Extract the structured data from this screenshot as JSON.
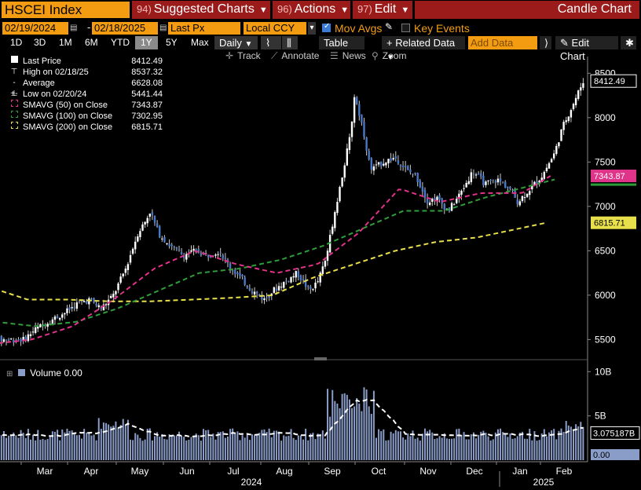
{
  "header": {
    "ticker": "HSCEI Index",
    "menu_suggested": {
      "num": "94)",
      "label": "Suggested Charts"
    },
    "menu_actions": {
      "num": "96)",
      "label": "Actions"
    },
    "menu_edit": {
      "num": "97)",
      "label": "Edit"
    },
    "chart_title": "Candle Chart"
  },
  "controls": {
    "start_date": "02/19/2024",
    "end_date": "02/18/2025",
    "field": "Last Px",
    "currency": "Local CCY",
    "mov_avgs_label": "Mov Avgs",
    "mov_avgs_checked": true,
    "key_events_label": "Key Events",
    "key_events_checked": false
  },
  "periods": [
    "1D",
    "3D",
    "1M",
    "6M",
    "YTD",
    "1Y",
    "5Y",
    "Max"
  ],
  "active_period": "1Y",
  "frequency": "Daily",
  "table_label": "Table",
  "related_label": "+ Related Data",
  "add_data_placeholder": "Add Data",
  "edit_chart_label": "Edit Chart",
  "toolbar": {
    "track": "Track",
    "annotate": "Annotate",
    "news": "News",
    "zoom": "Zoom"
  },
  "legend": [
    {
      "label": "Last Price",
      "value": "8412.49"
    },
    {
      "label": "High on 02/18/25",
      "value": "8537.32"
    },
    {
      "label": "Average",
      "value": "6628.08"
    },
    {
      "label": "Low on 02/20/24",
      "value": "5441.44"
    },
    {
      "label": "SMAVG (50)  on Close",
      "value": "7343.87"
    },
    {
      "label": "SMAVG (100)  on Close",
      "value": "7302.95"
    },
    {
      "label": "SMAVG (200)  on Close",
      "value": "6815.71"
    }
  ],
  "colors": {
    "sma50": "#e0338a",
    "sma100": "#2e9e3a",
    "sma200": "#e8e04a",
    "up": "#ffffff",
    "down": "#4a78c8",
    "accent": "#f39c12",
    "menu": "#9b1b1b"
  },
  "price_tags": {
    "last": "8412.49",
    "sma50": "7343.87",
    "sma200": "6815.71"
  },
  "volume": {
    "legend": "Volume 0.00",
    "last_avg": "3.075187B",
    "last": "0.00"
  },
  "chart_data": {
    "type": "candlestick",
    "price_axis": {
      "ticks": [
        "5500",
        "6000",
        "6500",
        "7000",
        "7500",
        "8000",
        "8500"
      ],
      "range": [
        5300,
        8600
      ]
    },
    "volume_axis": {
      "ticks": [
        "10B",
        "5B"
      ],
      "range": [
        0,
        11
      ]
    },
    "x_months": [
      "Mar",
      "Apr",
      "May",
      "Jun",
      "Jul",
      "Aug",
      "Sep",
      "Oct",
      "Nov",
      "Dec",
      "Jan",
      "Feb"
    ],
    "years": [
      "2024",
      "2025"
    ],
    "close_path_months": [
      [
        0,
        5500
      ],
      [
        0.3,
        5620
      ],
      [
        0.6,
        5700
      ],
      [
        1.0,
        5800
      ],
      [
        1.3,
        5900
      ],
      [
        1.6,
        5950
      ],
      [
        1.9,
        5850
      ],
      [
        2.2,
        6000
      ],
      [
        2.5,
        6300
      ],
      [
        2.8,
        6700
      ],
      [
        3.0,
        6850
      ],
      [
        3.1,
        6950
      ],
      [
        3.3,
        6700
      ],
      [
        3.6,
        6550
      ],
      [
        3.9,
        6450
      ],
      [
        4.2,
        6500
      ],
      [
        4.5,
        6450
      ],
      [
        4.8,
        6500
      ],
      [
        5.0,
        6350
      ],
      [
        5.3,
        6200
      ],
      [
        5.6,
        6050
      ],
      [
        5.9,
        5950
      ],
      [
        6.1,
        6050
      ],
      [
        6.4,
        6150
      ],
      [
        6.7,
        6250
      ],
      [
        7.0,
        6050
      ],
      [
        7.2,
        6150
      ],
      [
        7.4,
        6400
      ],
      [
        7.6,
        6900
      ],
      [
        7.8,
        7350
      ],
      [
        8.0,
        7800
      ],
      [
        8.1,
        8250
      ],
      [
        8.3,
        7900
      ],
      [
        8.5,
        7400
      ],
      [
        8.8,
        7500
      ],
      [
        9.1,
        7550
      ],
      [
        9.4,
        7400
      ],
      [
        9.6,
        7350
      ],
      [
        9.9,
        7050
      ],
      [
        10.1,
        7100
      ],
      [
        10.4,
        6950
      ],
      [
        10.7,
        7150
      ],
      [
        11.0,
        7400
      ],
      [
        11.3,
        7250
      ],
      [
        11.6,
        7300
      ],
      [
        11.9,
        7200
      ],
      [
        12.1,
        7050
      ],
      [
        12.4,
        7200
      ],
      [
        12.7,
        7350
      ],
      [
        13.0,
        7600
      ],
      [
        13.2,
        7900
      ],
      [
        13.5,
        8200
      ],
      [
        13.7,
        8412
      ]
    ],
    "sma50_months": [
      [
        0,
        5450
      ],
      [
        1,
        5500
      ],
      [
        2,
        5650
      ],
      [
        3,
        5950
      ],
      [
        4,
        6300
      ],
      [
        5,
        6500
      ],
      [
        6,
        6350
      ],
      [
        7,
        6250
      ],
      [
        8,
        6350
      ],
      [
        9,
        6700
      ],
      [
        10,
        7200
      ],
      [
        11,
        7050
      ],
      [
        12,
        7150
      ],
      [
        13,
        7150
      ],
      [
        13.7,
        7344
      ]
    ],
    "sma100_months": [
      [
        0,
        5700
      ],
      [
        1,
        5650
      ],
      [
        2,
        5700
      ],
      [
        3,
        5850
      ],
      [
        4,
        6050
      ],
      [
        5,
        6250
      ],
      [
        6,
        6300
      ],
      [
        7,
        6400
      ],
      [
        8,
        6550
      ],
      [
        9,
        6750
      ],
      [
        10,
        6950
      ],
      [
        11,
        6950
      ],
      [
        12,
        7100
      ],
      [
        13.7,
        7303
      ]
    ],
    "sma200_months": [
      [
        0,
        6100
      ],
      [
        1,
        5950
      ],
      [
        2,
        5950
      ],
      [
        3,
        5930
      ],
      [
        4,
        5930
      ],
      [
        5,
        5950
      ],
      [
        6,
        5970
      ],
      [
        7,
        6000
      ],
      [
        8,
        6200
      ],
      [
        9,
        6350
      ],
      [
        10,
        6500
      ],
      [
        11,
        6600
      ],
      [
        12,
        6650
      ],
      [
        13.7,
        6816
      ]
    ]
  }
}
